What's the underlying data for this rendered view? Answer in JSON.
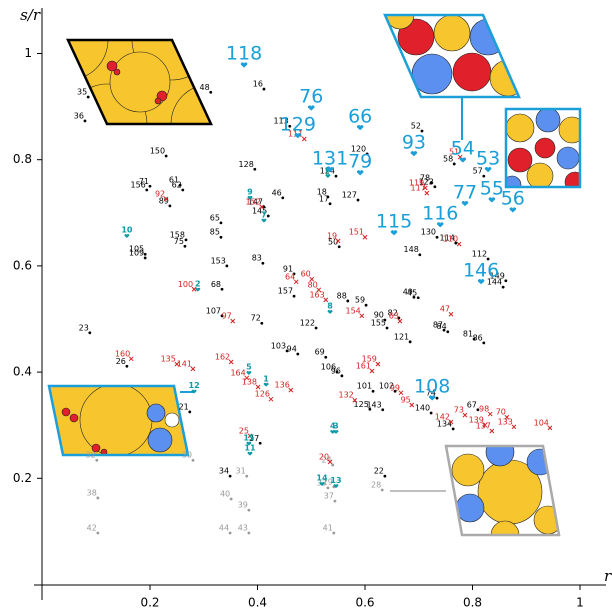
{
  "chart_data": {
    "type": "scatter",
    "xlabel": "r",
    "ylabel": "s/r",
    "xlim": [
      0,
      1.05
    ],
    "ylim": [
      0,
      1.08
    ],
    "xticks": [
      0.2,
      0.4,
      0.6,
      0.8,
      1
    ],
    "yticks": [
      0.2,
      0.4,
      0.6,
      0.8,
      1
    ],
    "series": [
      {
        "color": "#000000",
        "marker": "dot",
        "label_style": "small",
        "labels": [
          35,
          48,
          16,
          36,
          113,
          150,
          128,
          71,
          156,
          61,
          62,
          89,
          46,
          147,
          145,
          18,
          17,
          124,
          120,
          127,
          52,
          78,
          58,
          123,
          57,
          65,
          85,
          75,
          158,
          105,
          109,
          153,
          83,
          91,
          50,
          130,
          114,
          148,
          112,
          149,
          144,
          68,
          157,
          88,
          59,
          49,
          45,
          107,
          72,
          122,
          90,
          82,
          155,
          121,
          87,
          84,
          81,
          86,
          23,
          26,
          103,
          94,
          69,
          106,
          96,
          101,
          102,
          74,
          140,
          125,
          143,
          67,
          21,
          27,
          134,
          34,
          22
        ],
        "x": [
          0.085,
          0.313,
          0.412,
          0.079,
          0.46,
          0.23,
          0.395,
          0.2,
          0.194,
          0.256,
          0.261,
          0.237,
          0.447,
          0.412,
          0.42,
          0.531,
          0.535,
          0.546,
          0.604,
          0.587,
          0.706,
          0.723,
          0.766,
          0.73,
          0.821,
          0.332,
          0.332,
          0.265,
          0.267,
          0.191,
          0.191,
          0.343,
          0.41,
          0.468,
          0.552,
          0.734,
          0.769,
          0.702,
          0.829,
          0.862,
          0.857,
          0.334,
          0.468,
          0.568,
          0.602,
          0.691,
          0.699,
          0.334,
          0.408,
          0.509,
          0.637,
          0.663,
          0.641,
          0.684,
          0.747,
          0.754,
          0.803,
          0.821,
          0.088,
          0.157,
          0.455,
          0.475,
          0.527,
          0.548,
          0.557,
          0.615,
          0.656,
          0.734,
          0.723,
          0.609,
          0.633,
          0.81,
          0.274,
          0.405,
          0.764,
          0.349,
          0.637
        ],
        "y": [
          0.918,
          0.927,
          0.933,
          0.873,
          0.863,
          0.807,
          0.782,
          0.75,
          0.743,
          0.752,
          0.743,
          0.713,
          0.728,
          0.711,
          0.694,
          0.73,
          0.717,
          0.769,
          0.811,
          0.724,
          0.854,
          0.756,
          0.792,
          0.749,
          0.769,
          0.681,
          0.654,
          0.637,
          0.649,
          0.622,
          0.615,
          0.6,
          0.605,
          0.585,
          0.636,
          0.654,
          0.643,
          0.621,
          0.613,
          0.572,
          0.56,
          0.556,
          0.543,
          0.534,
          0.526,
          0.541,
          0.54,
          0.506,
          0.492,
          0.483,
          0.498,
          0.502,
          0.483,
          0.457,
          0.479,
          0.476,
          0.462,
          0.455,
          0.474,
          0.411,
          0.44,
          0.434,
          0.428,
          0.4,
          0.393,
          0.364,
          0.364,
          0.351,
          0.323,
          0.33,
          0.329,
          0.329,
          0.325,
          0.266,
          0.293,
          0.204,
          0.204
        ]
      },
      {
        "color": "#9a9a9a",
        "marker": "dot",
        "label_style": "small",
        "labels": [
          32,
          30,
          31,
          24,
          29,
          33,
          37,
          38,
          40,
          39,
          42,
          44,
          43,
          41,
          28
        ],
        "x": [
          0.101,
          0.28,
          0.38,
          0.54,
          0.542,
          0.531,
          0.544,
          0.103,
          0.351,
          0.384,
          0.103,
          0.349,
          0.384,
          0.542,
          0.632
        ],
        "y": [
          0.234,
          0.234,
          0.204,
          0.225,
          0.184,
          0.182,
          0.157,
          0.163,
          0.161,
          0.14,
          0.097,
          0.097,
          0.097,
          0.097,
          0.178
        ]
      },
      {
        "color": "#d62020",
        "marker": "x",
        "label_style": "small",
        "labels": [
          111,
          92,
          152,
          19,
          151,
          119,
          117,
          51,
          110,
          64,
          60,
          80,
          163,
          100,
          97,
          154,
          63,
          47,
          160,
          135,
          141,
          162,
          164,
          138,
          126,
          136,
          159,
          161,
          132,
          99,
          95,
          142,
          73,
          98,
          70,
          139,
          137,
          133,
          104,
          25,
          20
        ],
        "x": [
          0.487,
          0.23,
          0.408,
          0.55,
          0.6,
          0.712,
          0.715,
          0.777,
          0.775,
          0.472,
          0.501,
          0.514,
          0.527,
          0.282,
          0.354,
          0.594,
          0.665,
          0.76,
          0.165,
          0.25,
          0.28,
          0.351,
          0.38,
          0.401,
          0.425,
          0.462,
          0.624,
          0.613,
          0.581,
          0.667,
          0.687,
          0.76,
          0.786,
          0.833,
          0.864,
          0.823,
          0.836,
          0.877,
          0.944,
          0.386,
          0.535
        ],
        "y": [
          0.839,
          0.726,
          0.711,
          0.647,
          0.654,
          0.747,
          0.737,
          0.805,
          0.641,
          0.57,
          0.575,
          0.555,
          0.536,
          0.556,
          0.496,
          0.506,
          0.496,
          0.509,
          0.425,
          0.415,
          0.406,
          0.419,
          0.389,
          0.372,
          0.349,
          0.366,
          0.415,
          0.402,
          0.347,
          0.361,
          0.338,
          0.306,
          0.319,
          0.321,
          0.315,
          0.3,
          0.289,
          0.297,
          0.295,
          0.28,
          0.231
        ]
      },
      {
        "color": "#0e9aa7",
        "marker": "heart",
        "label_style": "bold",
        "labels": [
          9,
          7,
          10,
          2,
          6,
          8,
          5,
          1,
          12,
          4,
          3,
          15,
          11,
          14,
          13
        ],
        "x": [
          0.386,
          0.412,
          0.157,
          0.289,
          0.531,
          0.535,
          0.384,
          0.416,
          0.282,
          0.54,
          0.546,
          0.384,
          0.386,
          0.52,
          0.546
        ],
        "y": [
          0.728,
          0.685,
          0.656,
          0.555,
          0.769,
          0.513,
          0.398,
          0.376,
          0.363,
          0.287,
          0.287,
          0.265,
          0.246,
          0.189,
          0.185
        ]
      },
      {
        "color": "#1a9fd8",
        "marker": "heart",
        "label_style": "large",
        "labels": [
          118,
          76,
          66,
          129,
          131,
          79,
          93,
          54,
          53,
          77,
          55,
          56,
          116,
          115,
          146,
          108
        ],
        "x": [
          0.375,
          0.5,
          0.591,
          0.475,
          0.535,
          0.591,
          0.691,
          0.782,
          0.829,
          0.786,
          0.836,
          0.875,
          0.74,
          0.654,
          0.816,
          0.725
        ],
        "y": [
          0.978,
          0.897,
          0.86,
          0.845,
          0.781,
          0.775,
          0.811,
          0.799,
          0.781,
          0.717,
          0.724,
          0.705,
          0.677,
          0.662,
          0.57,
          0.351
        ]
      }
    ]
  }
}
